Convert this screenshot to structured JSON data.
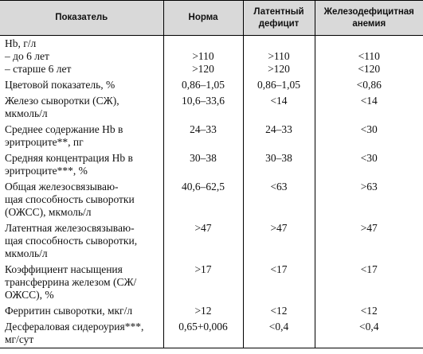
{
  "table": {
    "header": [
      [
        "Показатель"
      ],
      [
        "Норма"
      ],
      [
        "Латентный",
        "дефицит"
      ],
      [
        "Железодефицитная",
        "анемия"
      ]
    ],
    "rows": [
      [
        [
          "Hb, г/л",
          "– до 6 лет",
          "– старше 6 лет"
        ],
        [
          ">110",
          ">120"
        ],
        [
          ">110",
          ">120"
        ],
        [
          "<110",
          "<120"
        ]
      ],
      [
        [
          "Цветовой показатель, %"
        ],
        [
          "0,86–1,05"
        ],
        [
          "0,86–1,05"
        ],
        [
          "<0,86"
        ]
      ],
      [
        [
          "Железо сыворотки (СЖ),",
          "мкмоль/л"
        ],
        [
          "10,6–33,6"
        ],
        [
          "<14"
        ],
        [
          "<14"
        ]
      ],
      [
        [
          "Среднее содержание Hb в",
          "эритроците**, пг"
        ],
        [
          "24–33"
        ],
        [
          "24–33"
        ],
        [
          "<30"
        ]
      ],
      [
        [
          "Средняя концентрация Hb в",
          "эритроците***, %"
        ],
        [
          "30–38"
        ],
        [
          "30–38"
        ],
        [
          "<30"
        ]
      ],
      [
        [
          "Общая железосвязываю-",
          "щая способность сыворотки",
          "(ОЖСС), мкмоль/л"
        ],
        [
          "40,6–62,5"
        ],
        [
          "<63"
        ],
        [
          ">63"
        ]
      ],
      [
        [
          "Латентная железосвязываю-",
          "щая способность сыворотки,",
          "мкмоль/л"
        ],
        [
          ">47"
        ],
        [
          ">47"
        ],
        [
          ">47"
        ]
      ],
      [
        [
          "Коэффициент насыщения",
          "трансферрина железом (СЖ/",
          "ОЖСС), %"
        ],
        [
          ">17"
        ],
        [
          "<17"
        ],
        [
          "<17"
        ]
      ],
      [
        [
          "Ферритин сыворотки, мкг/л"
        ],
        [
          ">12"
        ],
        [
          "<12"
        ],
        [
          "<12"
        ]
      ],
      [
        [
          "Десфераловая сидероурия***,",
          "мг/сут"
        ],
        [
          "0,65+0,006"
        ],
        [
          "<0,4"
        ],
        [
          "<0,4"
        ]
      ]
    ]
  }
}
